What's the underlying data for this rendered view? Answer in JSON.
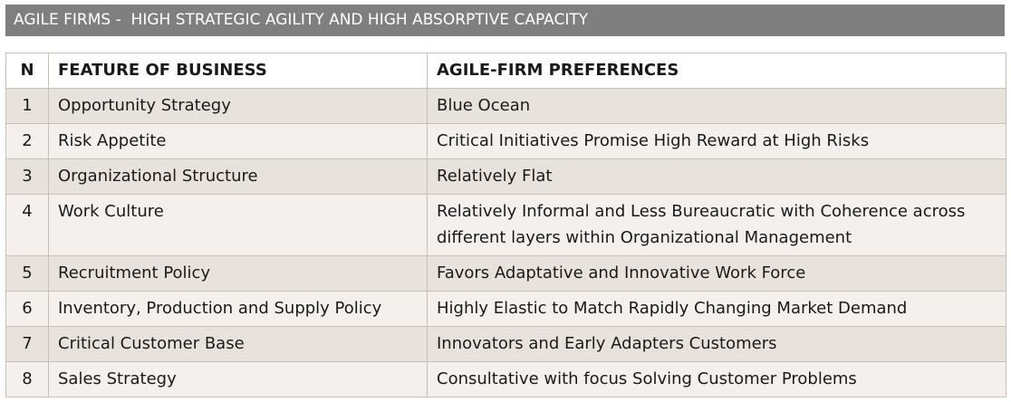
{
  "title": "AGILE FIRMS -  HIGH STRATEGIC AGILITY AND HIGH ABSORPTIVE CAPACITY",
  "columns": {
    "n": "N",
    "feature": "FEATURE OF BUSINESS",
    "preference": "AGILE-FIRM PREFERENCES"
  },
  "rows": [
    {
      "n": "1",
      "feature": "Opportunity  Strategy",
      "preference": "Blue Ocean"
    },
    {
      "n": "2",
      "feature": "Risk Appetite",
      "preference": "Critical Initiatives Promise High Reward at High Risks"
    },
    {
      "n": "3",
      "feature": "Organizational Structure",
      "preference": "Relatively Flat"
    },
    {
      "n": "4",
      "feature": "Work Culture",
      "preference": "Relatively Informal and Less Bureaucratic with Coherence across different layers within Organizational Management"
    },
    {
      "n": "5",
      "feature": "Recruitment Policy",
      "preference": "Favors Adaptative and Innovative Work Force"
    },
    {
      "n": "6",
      "feature": "Inventory, Production and Supply Policy",
      "preference": "Highly Elastic to Match Rapidly Changing Market Demand"
    },
    {
      "n": "7",
      "feature": "Critical Customer Base",
      "preference": "Innovators and Early Adapters Customers"
    },
    {
      "n": "8",
      "feature": "Sales Strategy",
      "preference": "Consultative with focus Solving Customer Problems"
    }
  ]
}
